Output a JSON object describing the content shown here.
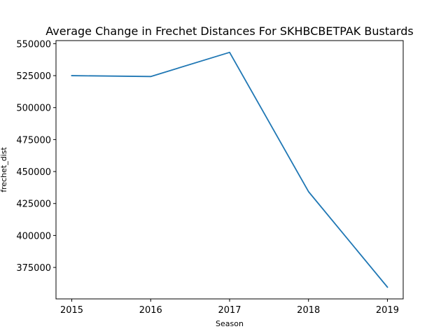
{
  "chart_data": {
    "type": "line",
    "title": "Average Change in Frechet Distances For SKHBCBETPAK Bustards",
    "xlabel": "Season",
    "ylabel": "frechet_dist",
    "x": [
      2015,
      2016,
      2017,
      2018,
      2019
    ],
    "x_tick_labels": [
      "2015",
      "2016",
      "2017",
      "2018",
      "2019"
    ],
    "series": [
      {
        "values": [
          525000,
          524300,
          543200,
          434300,
          359600
        ],
        "color": "#1f77b4"
      }
    ],
    "y_ticks": [
      375000,
      400000,
      425000,
      450000,
      475000,
      500000,
      525000,
      550000
    ],
    "y_tick_labels": [
      "375000",
      "400000",
      "425000",
      "450000",
      "475000",
      "500000",
      "525000",
      "550000"
    ],
    "xlim": [
      2014.8,
      2019.2
    ],
    "ylim": [
      350400,
      552400
    ],
    "grid": false,
    "legend": false
  }
}
